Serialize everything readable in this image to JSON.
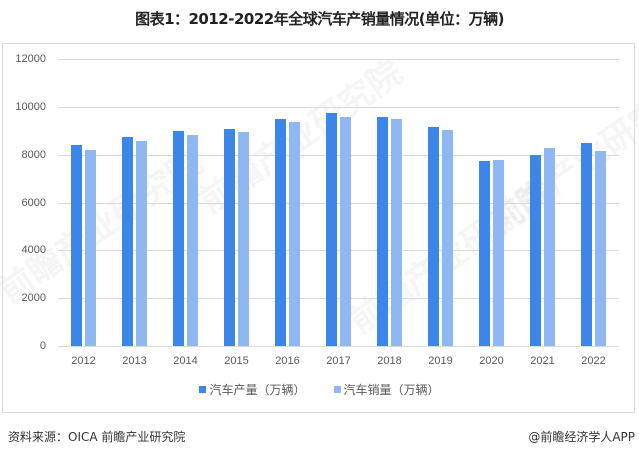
{
  "title": "图表1：2012-2022年全球汽车产销量情况(单位：万辆)",
  "chart_data": {
    "type": "bar",
    "title": "图表1：2012-2022年全球汽车产销量情况(单位：万辆)",
    "xlabel": "",
    "ylabel": "",
    "categories": [
      "2012",
      "2013",
      "2014",
      "2015",
      "2016",
      "2017",
      "2018",
      "2019",
      "2020",
      "2021",
      "2022"
    ],
    "series": [
      {
        "name": "汽车产量（万辆）",
        "color": "#3B86E8",
        "values": [
          8410,
          8740,
          8990,
          9070,
          9490,
          9740,
          9570,
          9160,
          7730,
          8000,
          8500
        ]
      },
      {
        "name": "汽车销量（万辆）",
        "color": "#8FB8F2",
        "values": [
          8190,
          8570,
          8820,
          8950,
          9370,
          9570,
          9490,
          9030,
          7780,
          8270,
          8160
        ]
      }
    ],
    "ylim": [
      0,
      12000
    ],
    "yticks": [
      0,
      2000,
      4000,
      6000,
      8000,
      10000,
      12000
    ],
    "grid": true,
    "legend_position": "bottom"
  },
  "footer": {
    "source": "资料来源：OICA 前瞻产业研究院",
    "credit": "@前瞻经济学人APP"
  },
  "watermark": "前瞻产业研究院"
}
